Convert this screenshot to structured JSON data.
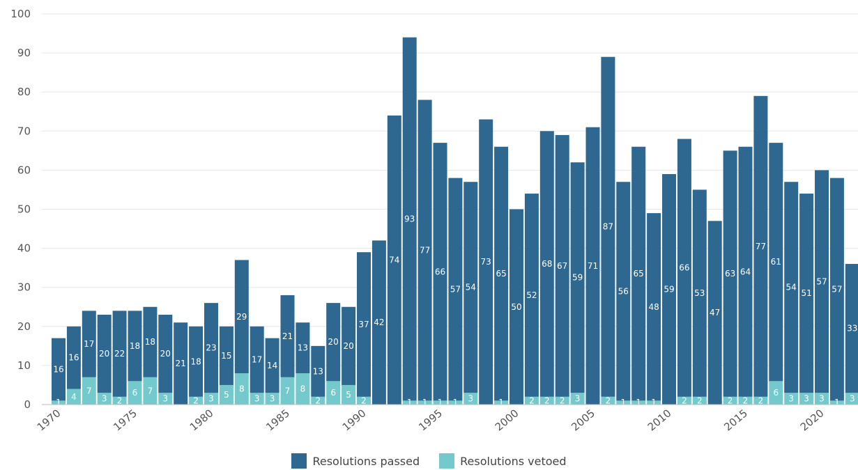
{
  "chart_data": {
    "type": "bar",
    "stacked": true,
    "title": "",
    "xlabel": "",
    "ylabel": "",
    "ylim": [
      0,
      100
    ],
    "yticks": [
      "0",
      "10",
      "20",
      "30",
      "40",
      "50",
      "60",
      "70",
      "80",
      "90",
      "100"
    ],
    "xticks": [
      "1970",
      "1975",
      "1980",
      "1985",
      "1990",
      "1995",
      "2000",
      "2005",
      "2010",
      "2015",
      "2020"
    ],
    "grid": true,
    "legend_position": "bottom-center",
    "categories": [
      1970,
      1971,
      1972,
      1973,
      1974,
      1975,
      1976,
      1977,
      1978,
      1979,
      1980,
      1981,
      1982,
      1983,
      1984,
      1985,
      1986,
      1987,
      1988,
      1989,
      1990,
      1991,
      1992,
      1993,
      1994,
      1995,
      1996,
      1997,
      1998,
      1999,
      2000,
      2001,
      2002,
      2003,
      2004,
      2005,
      2006,
      2007,
      2008,
      2009,
      2010,
      2011,
      2012,
      2013,
      2014,
      2015,
      2016,
      2017,
      2018,
      2019,
      2020,
      2021,
      2022
    ],
    "series": [
      {
        "name": "Resolutions passed",
        "color": "#2e6790",
        "values": [
          16,
          16,
          17,
          20,
          22,
          18,
          18,
          20,
          21,
          18,
          23,
          15,
          29,
          17,
          14,
          21,
          13,
          13,
          20,
          20,
          37,
          42,
          74,
          93,
          77,
          66,
          57,
          54,
          73,
          65,
          50,
          52,
          68,
          67,
          59,
          71,
          87,
          56,
          65,
          48,
          59,
          66,
          53,
          47,
          63,
          64,
          77,
          61,
          54,
          51,
          57,
          57,
          33
        ]
      },
      {
        "name": "Resolutions vetoed",
        "color": "#74c9cc",
        "values": [
          1,
          4,
          7,
          3,
          2,
          6,
          7,
          3,
          0,
          2,
          3,
          5,
          8,
          3,
          3,
          7,
          8,
          2,
          6,
          5,
          2,
          0,
          0,
          1,
          1,
          1,
          1,
          3,
          0,
          1,
          0,
          2,
          2,
          2,
          3,
          0,
          2,
          1,
          1,
          1,
          0,
          2,
          2,
          0,
          2,
          2,
          2,
          6,
          3,
          3,
          3,
          1,
          3
        ]
      }
    ]
  }
}
